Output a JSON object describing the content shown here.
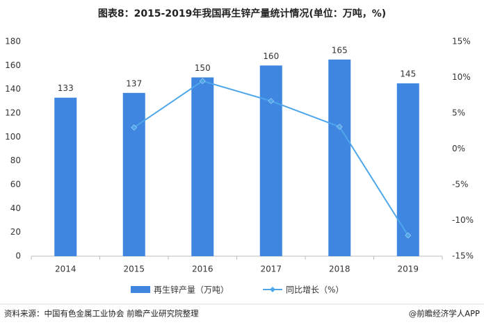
{
  "chart_data": {
    "type": "bar-line",
    "title": "图表8：2015-2019年我国再生锌产量统计情况(单位：万吨，%)",
    "categories": [
      "2014",
      "2015",
      "2016",
      "2017",
      "2018",
      "2019"
    ],
    "series": [
      {
        "name": "再生锌产量（万吨）",
        "type": "bar",
        "color": "#3f86e0",
        "values": [
          133,
          137,
          150,
          160,
          165,
          145
        ]
      },
      {
        "name": "同比增长（%）",
        "type": "line",
        "axis": "y2",
        "color": "#4ea6ea",
        "values": [
          null,
          3.0,
          9.5,
          6.7,
          3.1,
          -12.1
        ]
      }
    ],
    "ylim": [
      0,
      180
    ],
    "yticks": [
      0,
      20,
      40,
      60,
      80,
      100,
      120,
      140,
      160,
      180
    ],
    "y2lim": [
      -15,
      15
    ],
    "y2ticks": [
      {
        "value": -15,
        "label": "-15%"
      },
      {
        "value": -10,
        "label": "-10%"
      },
      {
        "value": -5,
        "label": "-5%"
      },
      {
        "value": 0,
        "label": "0%"
      },
      {
        "value": 5,
        "label": "5%"
      },
      {
        "value": 10,
        "label": "10%"
      },
      {
        "value": 15,
        "label": "15%"
      }
    ],
    "legend": "bottom",
    "source": "资料来源：中国有色金属工业协会 前瞻产业研究院整理",
    "credit": "@前瞻经济学人APP"
  }
}
